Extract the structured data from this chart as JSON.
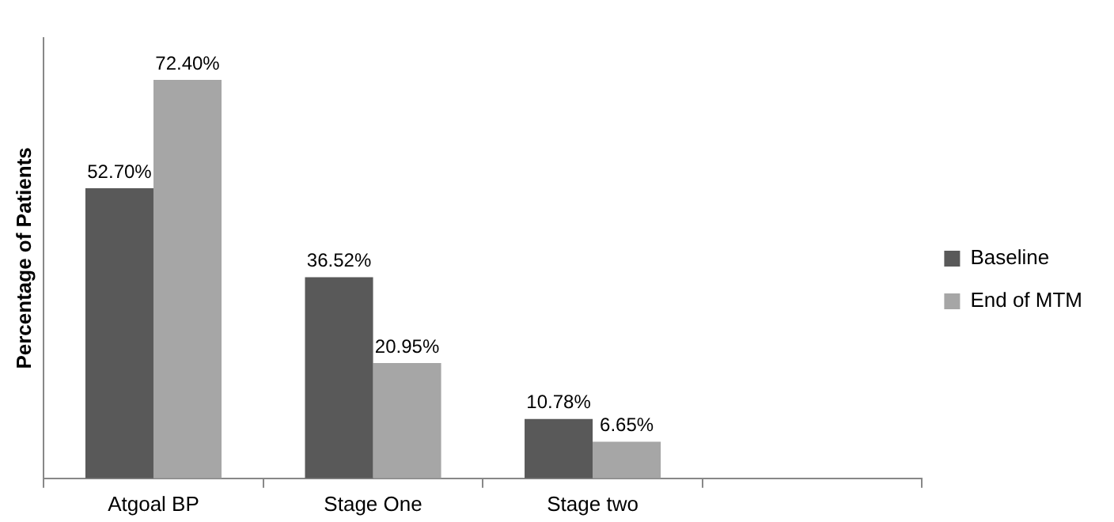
{
  "chart_data": {
    "type": "bar",
    "ylabel": "Percentage of Patients",
    "categories": [
      "Atgoal BP",
      "Stage One",
      "Stage two",
      null
    ],
    "legend": "right",
    "grid": false,
    "series": [
      {
        "name": "Baseline",
        "color": "#595959",
        "values": [
          52.7,
          36.52,
          10.78,
          null
        ],
        "value_labels": [
          "52.70%",
          "36.52%",
          "10.78%",
          null
        ]
      },
      {
        "name": "End of MTM",
        "color": "#a6a6a6",
        "values": [
          72.4,
          20.95,
          6.65,
          null
        ],
        "value_labels": [
          "72.40%",
          "20.95%",
          "6.65%",
          null
        ]
      }
    ]
  }
}
